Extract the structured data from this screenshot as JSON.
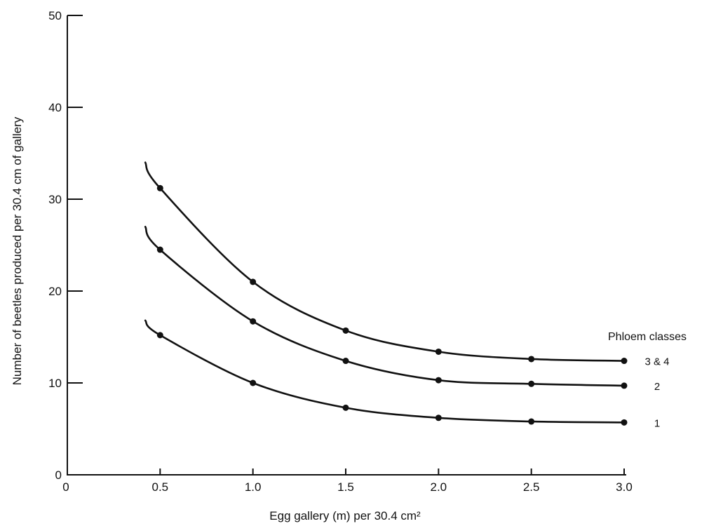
{
  "chart_data": {
    "type": "line",
    "xlabel": "Egg gallery (m) per 30.4 cm²",
    "ylabel": "Number of beetles produced per 30.4 cm of gallery",
    "xlim": [
      0,
      3.0
    ],
    "ylim": [
      0,
      50
    ],
    "x_ticks": [
      0.5,
      1.0,
      1.5,
      2.0,
      2.5,
      3.0
    ],
    "x_tick_labels": [
      "0.5",
      "1.0",
      "1.5",
      "2.0",
      "2.5",
      "3.0"
    ],
    "origin_label": "0",
    "y_ticks": [
      0,
      10,
      20,
      30,
      40,
      50
    ],
    "y_tick_labels": [
      "0",
      "10",
      "20",
      "30",
      "40",
      "50"
    ],
    "grid": false,
    "legend_title": "Phloem classes",
    "legend_placement": "right",
    "series": [
      {
        "name": "3 & 4",
        "x": [
          0.5,
          1.0,
          1.5,
          2.0,
          2.5,
          3.0
        ],
        "values": [
          31.2,
          21.0,
          15.7,
          13.4,
          12.6,
          12.4
        ],
        "curve_start": [
          0.42,
          34.0
        ]
      },
      {
        "name": "2",
        "x": [
          0.5,
          1.0,
          1.5,
          2.0,
          2.5,
          3.0
        ],
        "values": [
          24.5,
          16.7,
          12.4,
          10.3,
          9.9,
          9.7
        ],
        "curve_start": [
          0.42,
          27.0
        ]
      },
      {
        "name": "1",
        "x": [
          0.5,
          1.0,
          1.5,
          2.0,
          2.5,
          3.0
        ],
        "values": [
          15.2,
          10.0,
          7.3,
          6.2,
          5.8,
          5.7
        ],
        "curve_start": [
          0.42,
          16.8
        ]
      }
    ]
  }
}
